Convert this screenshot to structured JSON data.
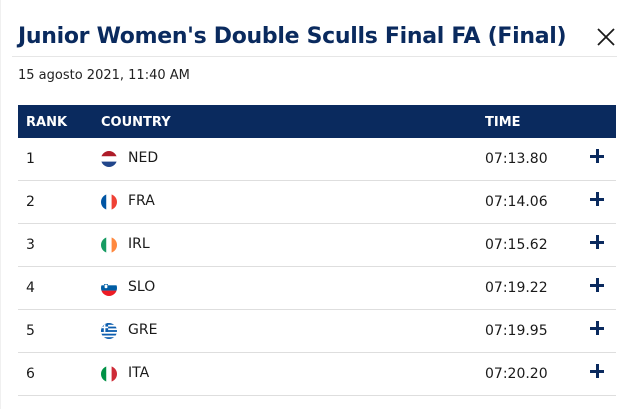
{
  "modal": {
    "title": "Junior Women's Double Sculls Final FA (Final)",
    "date": "15 agosto 2021, 11:40 AM",
    "close_icon": "close-icon"
  },
  "table": {
    "headers": {
      "rank": "RANK",
      "country": "COUNTRY",
      "time": "TIME"
    },
    "rows": [
      {
        "rank": "1",
        "country": "NED",
        "time": "07:13.80",
        "flag": "ned"
      },
      {
        "rank": "2",
        "country": "FRA",
        "time": "07:14.06",
        "flag": "fra"
      },
      {
        "rank": "3",
        "country": "IRL",
        "time": "07:15.62",
        "flag": "irl"
      },
      {
        "rank": "4",
        "country": "SLO",
        "time": "07:19.22",
        "flag": "slo"
      },
      {
        "rank": "5",
        "country": "GRE",
        "time": "07:19.95",
        "flag": "gre"
      },
      {
        "rank": "6",
        "country": "ITA",
        "time": "07:20.20",
        "flag": "ita"
      }
    ]
  },
  "colors": {
    "brand": "#0a2a5e",
    "divider": "#dedede"
  }
}
